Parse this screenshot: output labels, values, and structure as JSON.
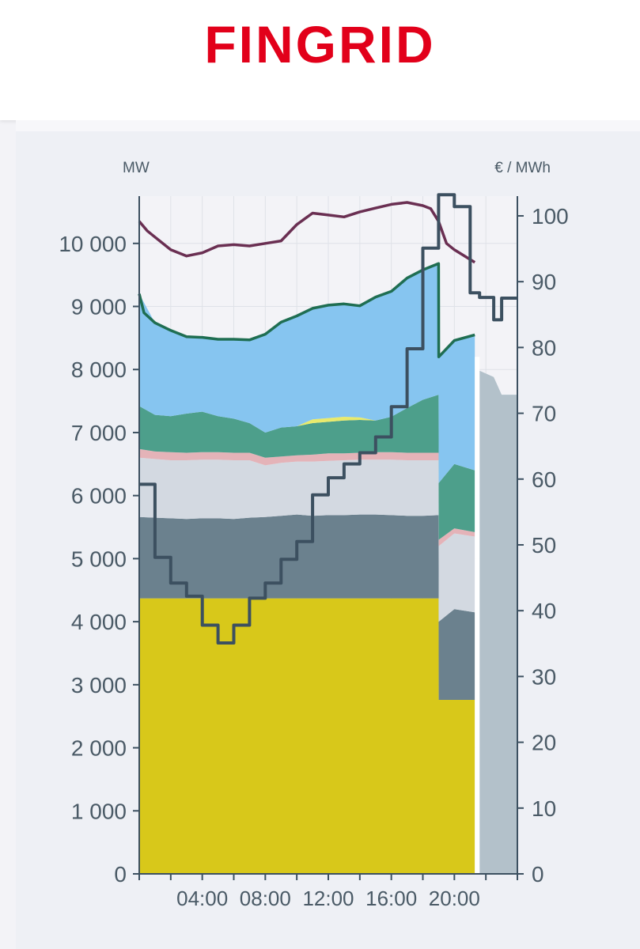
{
  "brand": {
    "logo_text": "FINGRID",
    "logo_color": "#e2001a"
  },
  "chart_data": {
    "type": "area",
    "left_axis": {
      "label": "MW",
      "ticks": [
        0,
        1000,
        2000,
        3000,
        4000,
        5000,
        6000,
        7000,
        8000,
        9000,
        10000
      ],
      "tick_labels": [
        "0",
        "1 000",
        "2 000",
        "3 000",
        "4 000",
        "5 000",
        "6 000",
        "7 000",
        "8 000",
        "9 000",
        "10 000"
      ],
      "ylim": [
        0,
        10750
      ]
    },
    "right_axis": {
      "label": "€ / MWh",
      "ticks": [
        0,
        10,
        20,
        30,
        40,
        50,
        60,
        70,
        80,
        90,
        100
      ],
      "tick_labels": [
        "0",
        "10",
        "20",
        "30",
        "40",
        "50",
        "60",
        "70",
        "80",
        "90",
        "100"
      ],
      "ylim": [
        0,
        103
      ]
    },
    "x_axis": {
      "tick_labels": [
        "04:00",
        "08:00",
        "12:00",
        "16:00",
        "20:00"
      ],
      "tick_hours": [
        4,
        8,
        12,
        16,
        20
      ],
      "xlim_hours": [
        0,
        24
      ]
    },
    "grid": true,
    "stacked_areas": [
      {
        "color": "#d8c81a",
        "x": [
          0,
          1,
          2,
          3,
          4,
          5,
          6,
          7,
          8,
          9,
          10,
          11,
          12,
          13,
          14,
          15,
          16,
          17,
          18,
          19,
          19.01,
          20,
          21.3
        ],
        "y": [
          4370,
          4370,
          4370,
          4370,
          4370,
          4370,
          4370,
          4370,
          4370,
          4370,
          4370,
          4370,
          4370,
          4370,
          4370,
          4370,
          4370,
          4370,
          4370,
          4370,
          2760,
          2760,
          2760
        ]
      },
      {
        "color": "#6b818e",
        "x": [
          0,
          1,
          2,
          3,
          4,
          5,
          6,
          7,
          8,
          9,
          10,
          11,
          12,
          13,
          14,
          15,
          16,
          17,
          18,
          19,
          19.01,
          20,
          21.3
        ],
        "y": [
          5660,
          5650,
          5640,
          5630,
          5640,
          5640,
          5630,
          5650,
          5660,
          5680,
          5700,
          5680,
          5690,
          5690,
          5700,
          5700,
          5690,
          5680,
          5680,
          5690,
          4000,
          4200,
          4150
        ]
      },
      {
        "color": "#d3d9e1",
        "x": [
          0,
          1,
          2,
          3,
          4,
          5,
          6,
          7,
          8,
          9,
          10,
          11,
          12,
          13,
          14,
          15,
          16,
          17,
          18,
          19,
          19.01,
          20,
          21.3
        ],
        "y": [
          6600,
          6580,
          6560,
          6560,
          6570,
          6570,
          6560,
          6560,
          6480,
          6520,
          6540,
          6540,
          6550,
          6560,
          6570,
          6570,
          6570,
          6560,
          6560,
          6560,
          5200,
          5400,
          5350
        ]
      },
      {
        "color": "#e4b3b8",
        "x": [
          0,
          1,
          2,
          3,
          4,
          5,
          6,
          7,
          8,
          9,
          10,
          11,
          12,
          13,
          14,
          15,
          16,
          17,
          18,
          19,
          19.01,
          20,
          21.3
        ],
        "y": [
          6740,
          6700,
          6690,
          6680,
          6690,
          6690,
          6680,
          6680,
          6600,
          6620,
          6640,
          6650,
          6670,
          6670,
          6680,
          6690,
          6690,
          6680,
          6680,
          6680,
          5300,
          5480,
          5420
        ]
      },
      {
        "color": "#4d9f8b",
        "x": [
          0,
          1,
          2,
          3,
          4,
          5,
          6,
          7,
          8,
          9,
          10,
          11,
          12,
          13,
          14,
          15,
          16,
          17,
          18,
          19,
          19.01,
          20,
          21.3
        ],
        "y": [
          7420,
          7280,
          7260,
          7300,
          7330,
          7260,
          7220,
          7150,
          7000,
          7080,
          7100,
          7150,
          7170,
          7190,
          7200,
          7190,
          7250,
          7390,
          7520,
          7600,
          6200,
          6500,
          6400
        ]
      },
      {
        "color": "#e9ea6c",
        "x": [
          0,
          1,
          2,
          3,
          4,
          5,
          6,
          7,
          8,
          9,
          10,
          11,
          12,
          13,
          14,
          15,
          16,
          17,
          18,
          19,
          19.01,
          20,
          21.3
        ],
        "y": [
          7420,
          7280,
          7260,
          7300,
          7330,
          7260,
          7220,
          7150,
          7000,
          7080,
          7100,
          7210,
          7230,
          7250,
          7240,
          7190,
          7250,
          7390,
          7520,
          7600,
          6200,
          6500,
          6400
        ]
      },
      {
        "color": "#86c5f0",
        "x": [
          0,
          1,
          2,
          3,
          4,
          5,
          6,
          7,
          8,
          9,
          10,
          11,
          12,
          13,
          14,
          15,
          16,
          17,
          18,
          19,
          19.01,
          20,
          21.3
        ],
        "y": [
          9200,
          8740,
          8620,
          8520,
          8510,
          8480,
          8480,
          8470,
          8560,
          8750,
          8850,
          8970,
          9020,
          9040,
          9010,
          9150,
          9240,
          9450,
          9580,
          9680,
          8200,
          8460,
          8550
        ]
      }
    ],
    "forecast_area": {
      "color": "#b3c1ca",
      "x": [
        21.6,
        22.5,
        23.0,
        24.0
      ],
      "y": [
        7980,
        7880,
        7600,
        7600
      ]
    },
    "series": [
      {
        "axis": "left",
        "color": "#1f6e52",
        "x": [
          0,
          0.3,
          1,
          2,
          3,
          4,
          5,
          6,
          7,
          8,
          9,
          10,
          11,
          12,
          13,
          14,
          15,
          16,
          17,
          18,
          19,
          19.01,
          20,
          21.3
        ],
        "y": [
          9200,
          8900,
          8740,
          8620,
          8520,
          8510,
          8480,
          8480,
          8470,
          8560,
          8750,
          8850,
          8970,
          9020,
          9040,
          9010,
          9150,
          9240,
          9450,
          9580,
          9680,
          8200,
          8460,
          8550
        ]
      },
      {
        "axis": "left",
        "color": "#6a2f52",
        "x": [
          0,
          0.5,
          1,
          2,
          3,
          4,
          5,
          6,
          7,
          8,
          9,
          10,
          11,
          12,
          13,
          14,
          15,
          16,
          17,
          18,
          18.5,
          19,
          19.5,
          20,
          21.3
        ],
        "y": [
          10350,
          10200,
          10100,
          9900,
          9800,
          9850,
          9960,
          9980,
          9960,
          10000,
          10040,
          10300,
          10480,
          10450,
          10420,
          10500,
          10560,
          10620,
          10650,
          10600,
          10550,
          10350,
          10000,
          9900,
          9700
        ]
      },
      {
        "axis": "right",
        "step": true,
        "color": "#3c5060",
        "x": [
          0,
          1,
          2,
          3,
          4,
          5,
          6,
          7,
          8,
          9,
          10,
          11,
          12,
          13,
          14,
          15,
          16,
          17,
          18,
          19,
          20,
          21,
          21.6,
          22.5,
          23,
          24
        ],
        "y": [
          59.2,
          48.1,
          44.2,
          42.2,
          37.8,
          35.1,
          37.8,
          41.9,
          44.2,
          47.8,
          50.5,
          57.6,
          60.2,
          62.3,
          64.0,
          66.4,
          71.0,
          79.8,
          95.1,
          103.2,
          101.4,
          88.3,
          87.6,
          84.2,
          87.5,
          87.5
        ]
      }
    ]
  }
}
